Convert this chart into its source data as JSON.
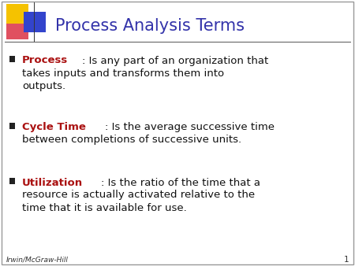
{
  "title": "Process Analysis Terms",
  "title_color": "#3333aa",
  "bg_color": "#ffffff",
  "border_color": "#999999",
  "term_color": "#aa1111",
  "text_color": "#111111",
  "footer_text": "Irwin/McGraw-Hill",
  "page_number": "1",
  "bullet_items": [
    {
      "term": "Process",
      "rest_line1": ": Is any part of an organization that",
      "extra_lines": [
        "takes inputs and transforms them into",
        "outputs."
      ]
    },
    {
      "term": "Cycle Time",
      "rest_line1": ": Is the average successive time",
      "extra_lines": [
        "between completions of successive units."
      ]
    },
    {
      "term": "Utilization",
      "rest_line1": ": Is the ratio of the time that a",
      "extra_lines": [
        "resource is actually activated relative to the",
        "time that it is available for use."
      ]
    }
  ],
  "logo_colors": {
    "yellow": "#f5c200",
    "red": "#e05060",
    "blue": "#3344cc"
  },
  "separator_color": "#555555",
  "title_font_size": 15,
  "term_font_size": 9.5,
  "def_font_size": 9.5,
  "footer_font_size": 6.5
}
